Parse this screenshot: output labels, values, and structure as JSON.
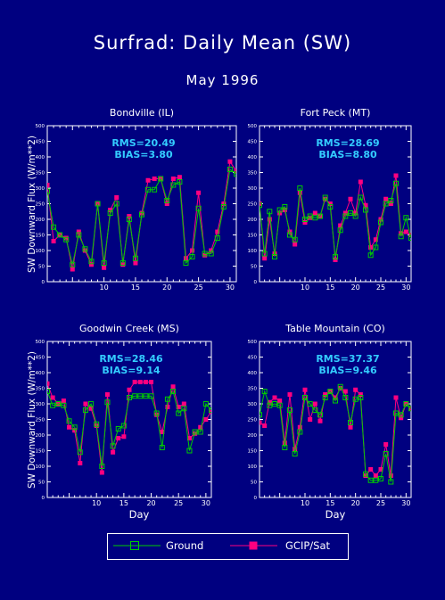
{
  "title": "Surfrad: Daily Mean (SW)",
  "subtitle": "May 1996",
  "ylabel": "SW Downward Flux (W/m**2)",
  "xlabel": "Day",
  "colors": {
    "ground": "#00cc00",
    "sat": "#ff0080",
    "stats": "#33ccff",
    "background": "#000080"
  },
  "legend": {
    "ground": "Ground",
    "sat": "GCIP/Sat"
  },
  "chart_data": [
    {
      "type": "line",
      "title": "Bondville (IL)",
      "rms_label": "RMS=20.49",
      "bias_label": "BIAS=3.80",
      "xlim": [
        1,
        31
      ],
      "ylim": [
        0,
        500
      ],
      "x_ticks": [
        "10",
        "15",
        "20",
        "25",
        "30"
      ],
      "y_ticks": [
        "0",
        "50",
        "100",
        "150",
        "200",
        "250",
        "300",
        "350",
        "400",
        "450",
        "500"
      ],
      "x": [
        1,
        2,
        3,
        4,
        5,
        6,
        7,
        8,
        9,
        10,
        11,
        12,
        13,
        14,
        15,
        16,
        17,
        18,
        19,
        20,
        21,
        22,
        23,
        24,
        25,
        26,
        27,
        28,
        29,
        30,
        31
      ],
      "series": [
        {
          "name": "Ground",
          "values": [
            290,
            175,
            150,
            135,
            55,
            150,
            105,
            65,
            250,
            60,
            220,
            250,
            60,
            200,
            75,
            215,
            295,
            295,
            330,
            260,
            310,
            320,
            60,
            80,
            235,
            90,
            90,
            140,
            240,
            360,
            345
          ]
        },
        {
          "name": "GCIP/Sat",
          "values": [
            310,
            130,
            150,
            140,
            40,
            160,
            100,
            55,
            250,
            45,
            230,
            270,
            55,
            210,
            60,
            220,
            325,
            330,
            330,
            250,
            330,
            335,
            75,
            100,
            285,
            85,
            100,
            160,
            250,
            385,
            355
          ]
        }
      ]
    },
    {
      "type": "line",
      "title": "Fort Peck (MT)",
      "rms_label": "RMS=28.69",
      "bias_label": "BIAS=8.80",
      "xlim": [
        1,
        31
      ],
      "ylim": [
        0,
        500
      ],
      "x_ticks": [
        "10",
        "15",
        "20",
        "25",
        "30"
      ],
      "y_ticks": [
        "0",
        "50",
        "100",
        "150",
        "200",
        "250",
        "300",
        "350",
        "400",
        "450",
        "500"
      ],
      "x": [
        1,
        2,
        3,
        4,
        5,
        6,
        7,
        8,
        9,
        10,
        11,
        12,
        13,
        14,
        15,
        16,
        17,
        18,
        19,
        20,
        21,
        22,
        23,
        24,
        25,
        26,
        27,
        28,
        29,
        30,
        31
      ],
      "series": [
        {
          "name": "Ground",
          "values": [
            245,
            90,
            225,
            80,
            230,
            240,
            150,
            135,
            300,
            200,
            210,
            205,
            210,
            270,
            240,
            80,
            165,
            210,
            220,
            210,
            270,
            230,
            85,
            110,
            190,
            250,
            260,
            315,
            145,
            205,
            140
          ]
        },
        {
          "name": "GCIP/Sat",
          "values": [
            250,
            75,
            200,
            90,
            220,
            230,
            160,
            120,
            285,
            190,
            205,
            220,
            210,
            265,
            250,
            70,
            180,
            220,
            265,
            220,
            320,
            245,
            110,
            135,
            200,
            265,
            250,
            340,
            155,
            160,
            150
          ]
        }
      ]
    },
    {
      "type": "line",
      "title": "Goodwin Creek (MS)",
      "rms_label": "RMS=28.46",
      "bias_label": "BIAS=9.14",
      "xlim": [
        1,
        31
      ],
      "ylim": [
        0,
        500
      ],
      "x_ticks": [
        "10",
        "15",
        "20",
        "25",
        "30"
      ],
      "y_ticks": [
        "0",
        "50",
        "100",
        "150",
        "200",
        "250",
        "300",
        "350",
        "400",
        "450",
        "500"
      ],
      "x": [
        1,
        2,
        3,
        4,
        5,
        6,
        7,
        8,
        9,
        10,
        11,
        12,
        13,
        14,
        15,
        16,
        17,
        18,
        19,
        20,
        21,
        22,
        23,
        24,
        25,
        26,
        27,
        28,
        29,
        30,
        31
      ],
      "series": [
        {
          "name": "Ground",
          "values": [
            340,
            295,
            300,
            295,
            245,
            225,
            145,
            280,
            300,
            235,
            100,
            305,
            165,
            220,
            230,
            320,
            325,
            325,
            325,
            325,
            270,
            160,
            315,
            340,
            270,
            285,
            150,
            210,
            210,
            300,
            280
          ]
        },
        {
          "name": "GCIP/Sat",
          "values": [
            365,
            320,
            300,
            310,
            225,
            215,
            110,
            300,
            285,
            230,
            80,
            330,
            145,
            190,
            195,
            345,
            370,
            370,
            370,
            370,
            265,
            210,
            290,
            355,
            290,
            300,
            190,
            205,
            225,
            250,
            275
          ]
        }
      ]
    },
    {
      "type": "line",
      "title": "Table Mountain (CO)",
      "rms_label": "RMS=37.37",
      "bias_label": "BIAS=9.46",
      "xlim": [
        1,
        31
      ],
      "ylim": [
        0,
        500
      ],
      "x_ticks": [
        "10",
        "15",
        "20",
        "25",
        "30"
      ],
      "y_ticks": [
        "0",
        "50",
        "100",
        "150",
        "200",
        "250",
        "300",
        "350",
        "400",
        "450",
        "500"
      ],
      "x": [
        1,
        2,
        3,
        4,
        5,
        6,
        7,
        8,
        9,
        10,
        11,
        12,
        13,
        14,
        15,
        16,
        17,
        18,
        19,
        20,
        21,
        22,
        23,
        24,
        25,
        26,
        27,
        28,
        29,
        30,
        31
      ],
      "series": [
        {
          "name": "Ground",
          "values": [
            265,
            340,
            295,
            300,
            295,
            160,
            280,
            140,
            210,
            320,
            300,
            280,
            265,
            320,
            340,
            310,
            355,
            320,
            240,
            315,
            320,
            75,
            55,
            55,
            60,
            140,
            50,
            270,
            265,
            300,
            285
          ]
        },
        {
          "name": "GCIP/Sat",
          "values": [
            240,
            230,
            305,
            320,
            310,
            175,
            330,
            155,
            225,
            345,
            250,
            300,
            245,
            330,
            340,
            320,
            350,
            340,
            225,
            345,
            330,
            70,
            90,
            70,
            90,
            170,
            70,
            320,
            255,
            300,
            285
          ]
        }
      ]
    }
  ]
}
